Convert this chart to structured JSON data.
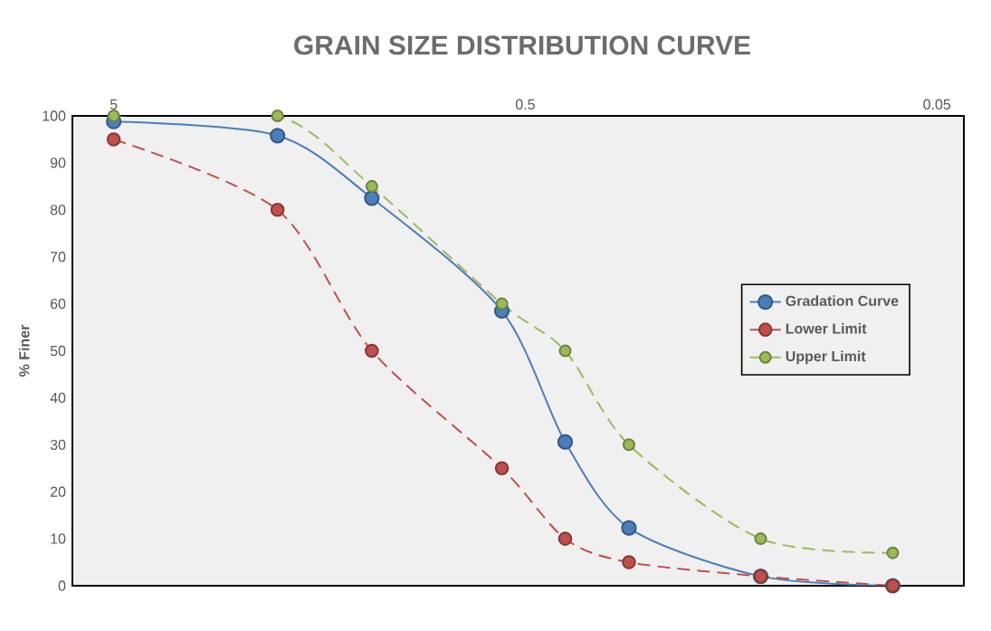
{
  "chart_data": {
    "type": "line",
    "title": "GRAIN SIZE DISTRIBUTION CURVE",
    "ylabel": "% Finer",
    "x": [
      5,
      2,
      1.18,
      0.57,
      0.4,
      0.28,
      0.134,
      0.064
    ],
    "series": [
      {
        "name": "Gradation Curve",
        "color": "#4a7ebb",
        "line_style": "solid",
        "values": [
          98.8,
          95.8,
          82.5,
          58.5,
          30.6,
          12.3,
          2,
          0
        ]
      },
      {
        "name": "Lower Limit",
        "color": "#c0504d",
        "line_style": "dashed",
        "values": [
          95,
          80,
          50,
          25,
          10,
          5,
          2,
          0
        ]
      },
      {
        "name": "Upper Limit",
        "color": "#9bbb59",
        "line_style": "dashed",
        "values": [
          100,
          100,
          85,
          60,
          50,
          30,
          10,
          7
        ]
      }
    ],
    "xlim": [
      6.3,
      0.043
    ],
    "ylim": [
      0,
      100
    ],
    "xticks": [
      5,
      0.5,
      0.05
    ],
    "yticks": [
      0,
      10,
      20,
      30,
      40,
      50,
      60,
      70,
      80,
      90,
      100
    ],
    "log": "x",
    "legend": "right",
    "marker": "circle"
  }
}
